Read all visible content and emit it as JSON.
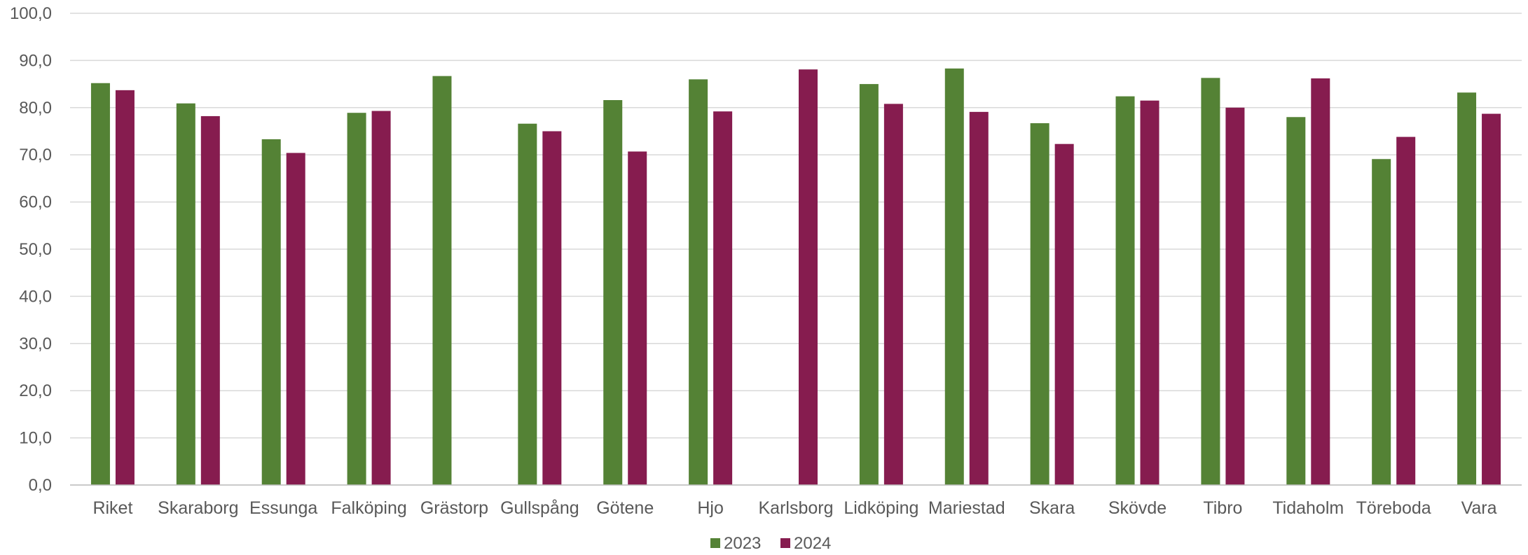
{
  "chart_data": {
    "type": "bar",
    "title": "",
    "xlabel": "",
    "ylabel": "",
    "ylim": [
      0,
      100
    ],
    "yticks": [
      "0,0",
      "10,0",
      "20,0",
      "30,0",
      "40,0",
      "50,0",
      "60,0",
      "70,0",
      "80,0",
      "90,0",
      "100,0"
    ],
    "grid": true,
    "legend_position": "bottom",
    "categories": [
      "Riket",
      "Skaraborg",
      "Essunga",
      "Falköping",
      "Grästorp",
      "Gullspång",
      "Götene",
      "Hjo",
      "Karlsborg",
      "Lidköping",
      "Mariestad",
      "Skara",
      "Skövde",
      "Tibro",
      "Tidaholm",
      "Töreboda",
      "Vara"
    ],
    "series": [
      {
        "name": "2023",
        "color": "#548235",
        "values": [
          85.2,
          80.9,
          73.3,
          78.9,
          86.7,
          76.6,
          81.6,
          86.0,
          null,
          85.0,
          88.3,
          76.7,
          82.4,
          86.3,
          78.0,
          69.1,
          83.2
        ]
      },
      {
        "name": "2024",
        "color": "#861C4F",
        "values": [
          83.7,
          78.2,
          70.4,
          79.3,
          null,
          75.0,
          70.7,
          79.2,
          88.1,
          80.8,
          79.1,
          72.3,
          81.5,
          80.0,
          86.2,
          73.8,
          78.7
        ]
      }
    ]
  }
}
